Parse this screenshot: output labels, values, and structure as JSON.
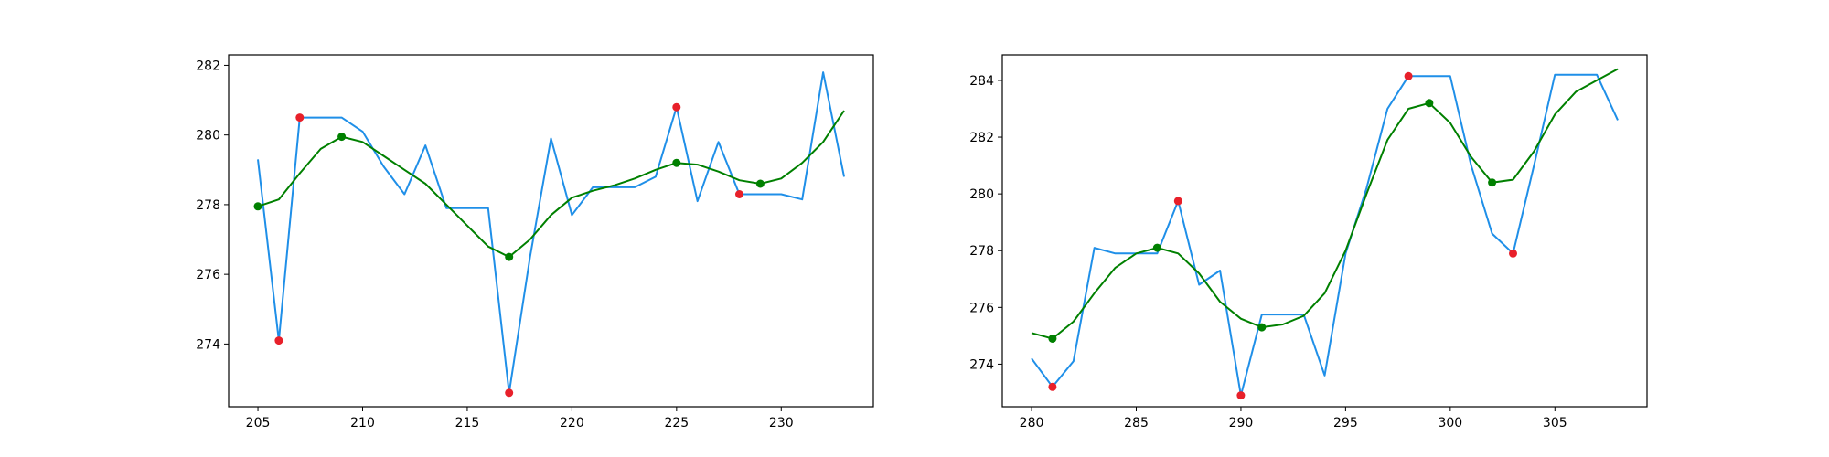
{
  "chart_data": [
    {
      "type": "line",
      "title": "",
      "xlabel": "",
      "ylabel": "",
      "xlim": [
        203.6,
        234.4
      ],
      "ylim": [
        272.2,
        282.3
      ],
      "xticks": [
        205,
        210,
        215,
        220,
        225,
        230
      ],
      "yticks": [
        274,
        276,
        278,
        280,
        282
      ],
      "grid": false,
      "series": [
        {
          "kind": "line",
          "color": "#1f8fe8",
          "x": [
            205,
            206,
            207,
            208,
            209,
            210,
            211,
            212,
            213,
            214,
            215,
            216,
            217,
            218,
            219,
            220,
            221,
            222,
            223,
            224,
            225,
            226,
            227,
            228,
            229,
            230,
            231,
            232,
            233
          ],
          "y": [
            279.3,
            274.1,
            280.5,
            280.5,
            280.5,
            280.1,
            279.1,
            278.3,
            279.7,
            277.9,
            277.9,
            277.9,
            272.6,
            276.5,
            279.9,
            277.7,
            278.5,
            278.5,
            278.5,
            278.8,
            280.8,
            278.1,
            279.8,
            278.3,
            278.3,
            278.3,
            278.15,
            281.8,
            278.8
          ]
        },
        {
          "kind": "line",
          "color": "#008000",
          "x": [
            205,
            206,
            207,
            208,
            209,
            210,
            211,
            212,
            213,
            214,
            215,
            216,
            217,
            218,
            219,
            220,
            221,
            222,
            223,
            224,
            225,
            226,
            227,
            228,
            229,
            230,
            231,
            232,
            233
          ],
          "y": [
            277.95,
            278.15,
            278.9,
            279.6,
            279.95,
            279.8,
            279.4,
            279.0,
            278.6,
            278.0,
            277.4,
            276.8,
            276.5,
            277.0,
            277.7,
            278.2,
            278.4,
            278.55,
            278.75,
            279.0,
            279.2,
            279.15,
            278.95,
            278.7,
            278.6,
            278.75,
            279.2,
            279.8,
            280.7
          ]
        },
        {
          "kind": "scatter",
          "color": "#e8202a",
          "x": [
            206,
            207,
            217,
            225,
            228
          ],
          "y": [
            274.1,
            280.5,
            272.6,
            280.8,
            278.3
          ]
        },
        {
          "kind": "scatter",
          "color": "#008000",
          "x": [
            205,
            209,
            217,
            225,
            229
          ],
          "y": [
            277.95,
            279.95,
            276.5,
            279.2,
            278.6
          ]
        }
      ]
    },
    {
      "type": "line",
      "title": "",
      "xlabel": "",
      "ylabel": "",
      "xlim": [
        278.6,
        309.4
      ],
      "ylim": [
        272.5,
        284.9
      ],
      "xticks": [
        280,
        285,
        290,
        295,
        300,
        305
      ],
      "yticks": [
        274,
        276,
        278,
        280,
        282,
        284
      ],
      "grid": false,
      "series": [
        {
          "kind": "line",
          "color": "#1f8fe8",
          "x": [
            280,
            281,
            282,
            283,
            284,
            285,
            286,
            287,
            288,
            289,
            290,
            291,
            292,
            293,
            294,
            295,
            296,
            297,
            298,
            299,
            300,
            301,
            302,
            303,
            304,
            305,
            306,
            307,
            308
          ],
          "y": [
            274.2,
            273.2,
            274.1,
            278.1,
            277.9,
            277.9,
            277.9,
            279.75,
            276.8,
            277.3,
            272.9,
            275.75,
            275.75,
            275.75,
            273.6,
            277.9,
            280.2,
            283.0,
            284.15,
            284.15,
            284.15,
            281.0,
            278.6,
            277.9,
            281.0,
            284.2,
            284.2,
            284.2,
            282.6
          ]
        },
        {
          "kind": "line",
          "color": "#008000",
          "x": [
            280,
            281,
            282,
            283,
            284,
            285,
            286,
            287,
            288,
            289,
            290,
            291,
            292,
            293,
            294,
            295,
            296,
            297,
            298,
            299,
            300,
            301,
            302,
            303,
            304,
            305,
            306,
            307,
            308
          ],
          "y": [
            275.1,
            274.9,
            275.5,
            276.5,
            277.4,
            277.9,
            278.1,
            277.9,
            277.2,
            276.2,
            275.6,
            275.3,
            275.4,
            275.7,
            276.5,
            278.0,
            280.0,
            281.9,
            283.0,
            283.2,
            282.5,
            281.3,
            280.4,
            280.5,
            281.5,
            282.8,
            283.6,
            284.0,
            284.4
          ]
        },
        {
          "kind": "scatter",
          "color": "#e8202a",
          "x": [
            281,
            287,
            290,
            298,
            303
          ],
          "y": [
            273.2,
            279.75,
            272.9,
            284.15,
            277.9
          ]
        },
        {
          "kind": "scatter",
          "color": "#008000",
          "x": [
            281,
            286,
            291,
            299,
            302
          ],
          "y": [
            274.9,
            278.1,
            275.3,
            283.2,
            280.4
          ]
        }
      ]
    }
  ]
}
